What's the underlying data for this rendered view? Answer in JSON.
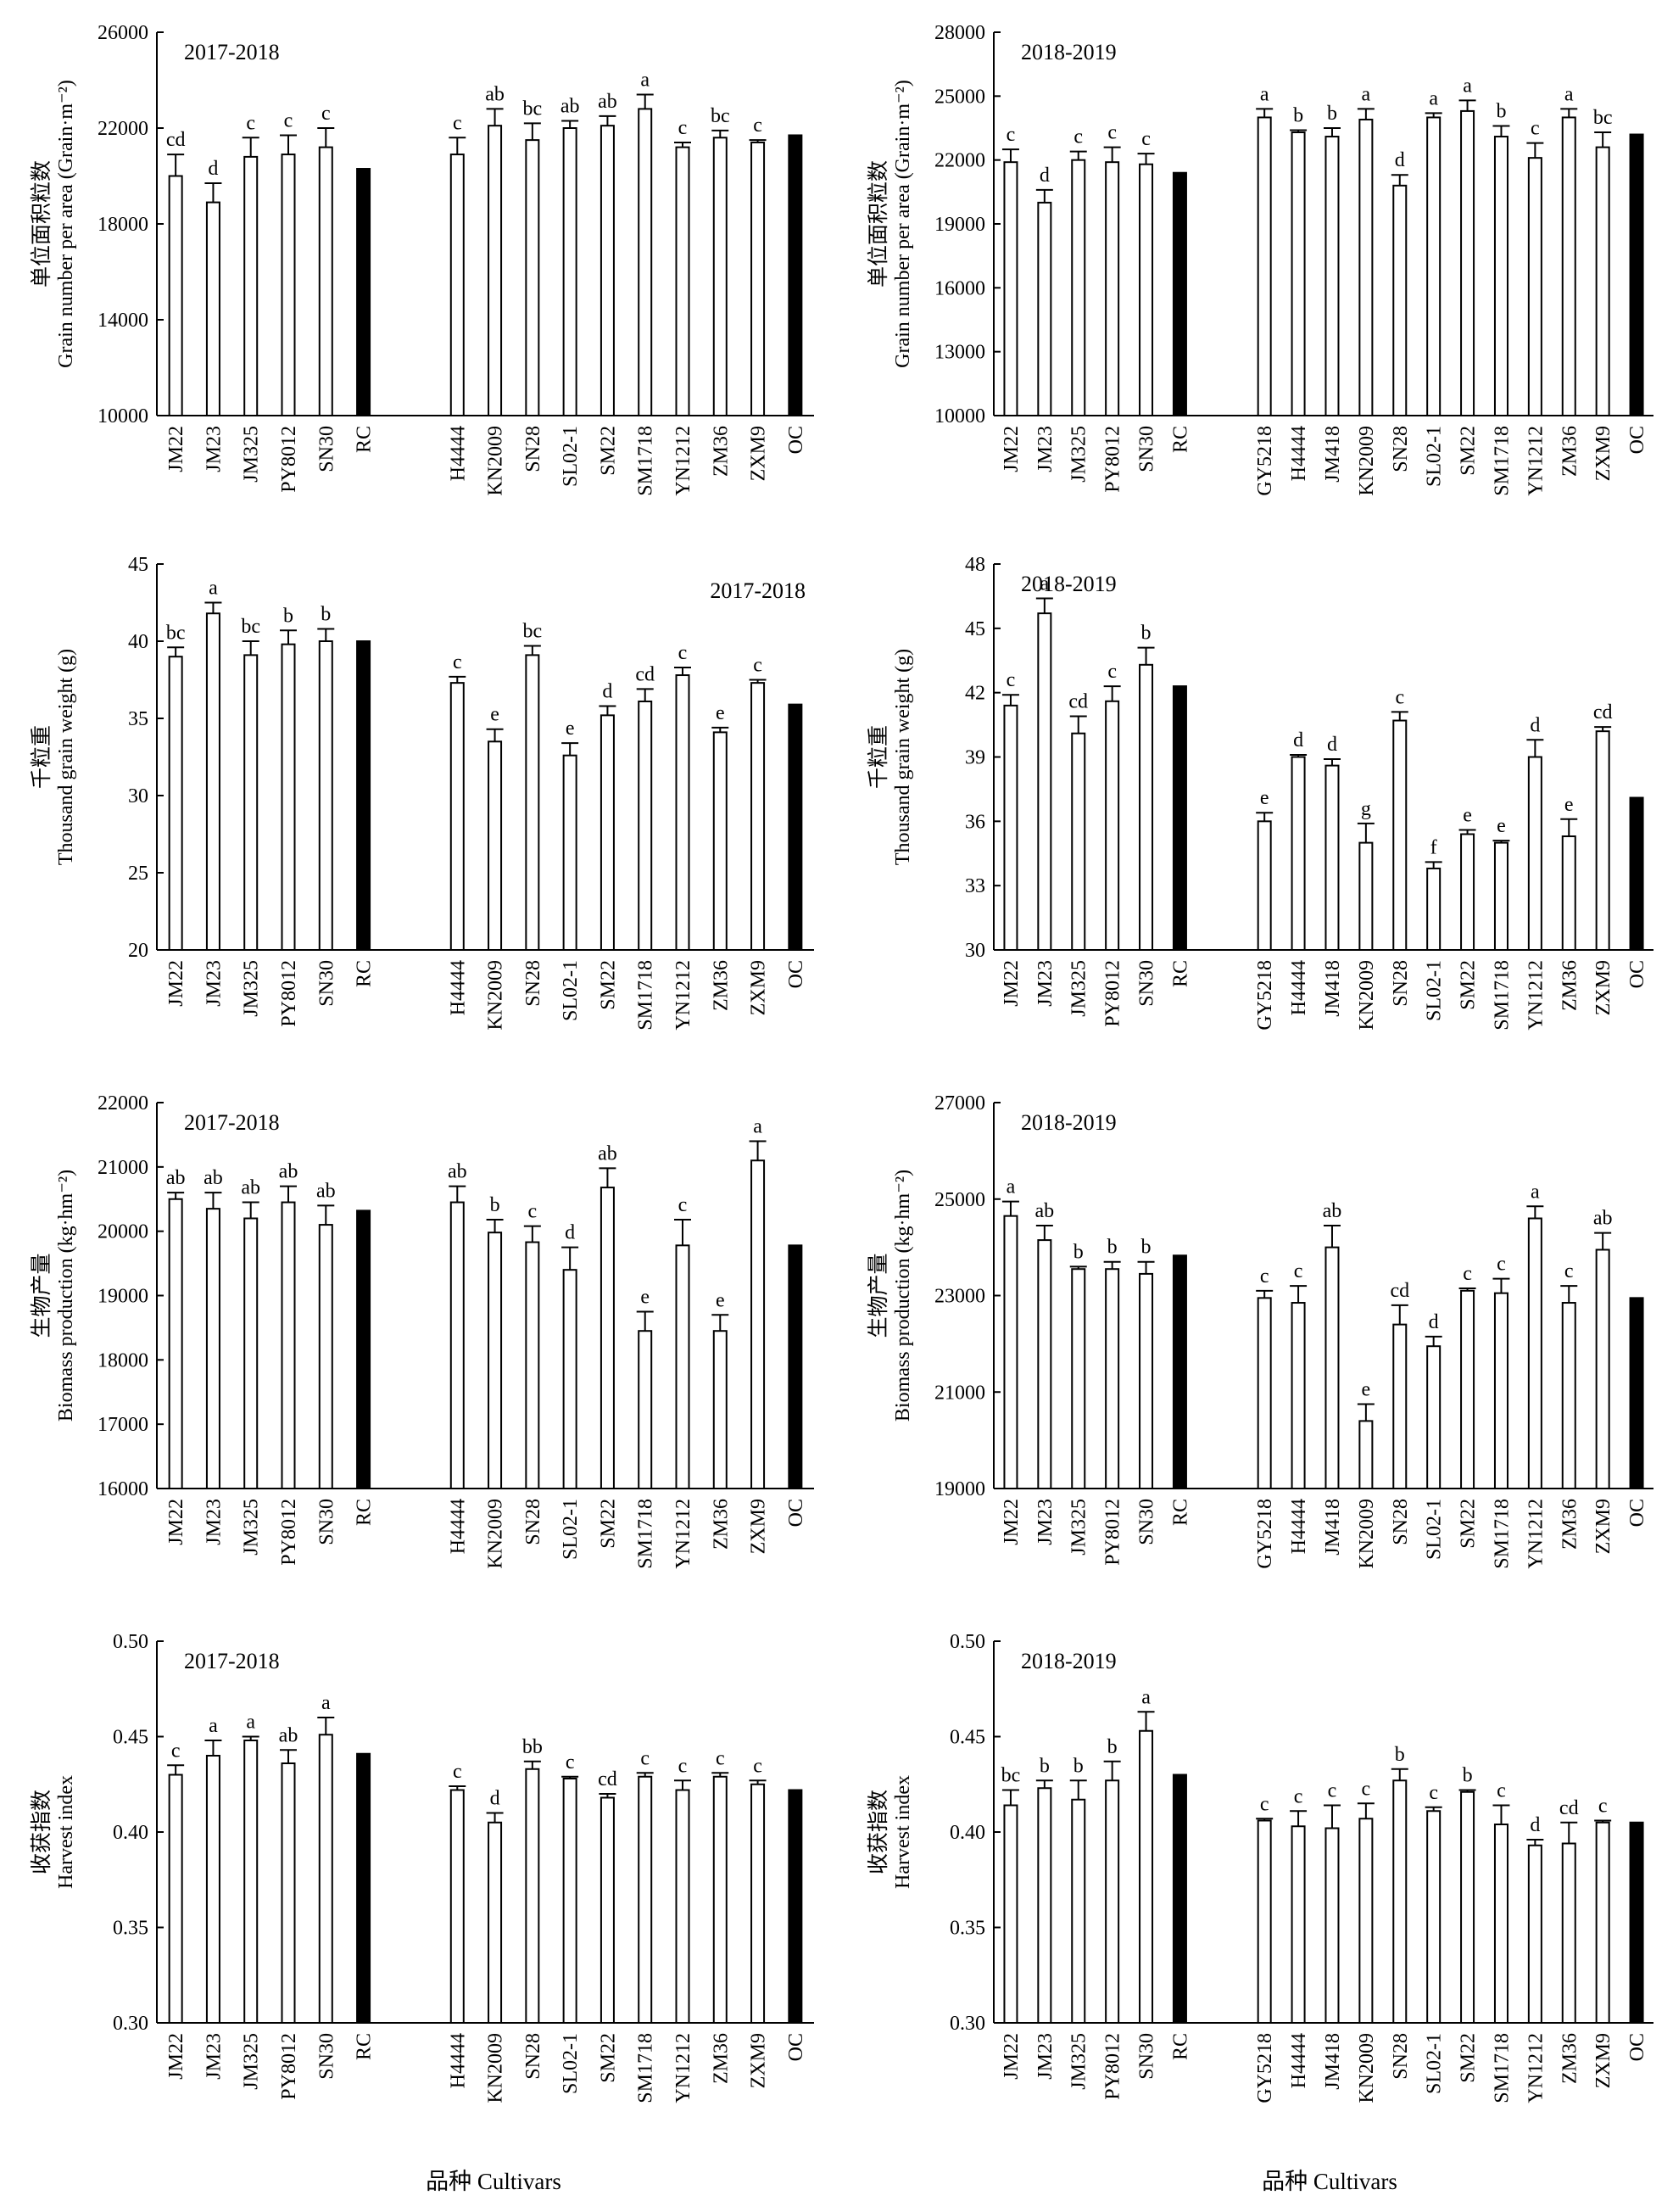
{
  "figure_xlabels": [
    "品种 Cultivars",
    "品种 Cultivars"
  ],
  "colors": {
    "regular_bar": "#ffffff",
    "control_bar": "#000000",
    "axis": "#000000"
  },
  "chart_data": [
    {
      "type": "bar",
      "panel": "a",
      "year_label": "2017-2018",
      "ylabel_cn": "单位面积粒数",
      "ylabel_en": "Grain number per area (Grain·m⁻²)",
      "ylim": [
        10000,
        26000
      ],
      "yticks": [
        "10000",
        "14000",
        "18000",
        "22000",
        "26000"
      ],
      "groups": [
        {
          "categories": [
            "JM22",
            "JM23",
            "JM325",
            "PY8012",
            "SN30",
            "RC"
          ],
          "values": [
            20000,
            18900,
            20800,
            20900,
            21200,
            20300
          ],
          "errors": [
            900,
            800,
            800,
            800,
            800,
            0
          ],
          "letters": [
            "cd",
            "d",
            "c",
            "c",
            "c",
            ""
          ]
        },
        {
          "categories": [
            "H4444",
            "KN2009",
            "SN28",
            "SL02-1",
            "SM22",
            "SM1718",
            "YN1212",
            "ZM36",
            "ZXM9",
            "OC"
          ],
          "values": [
            20900,
            22100,
            21500,
            22000,
            22100,
            22800,
            21200,
            21600,
            21400,
            21700
          ],
          "errors": [
            700,
            700,
            700,
            300,
            400,
            600,
            200,
            300,
            100,
            0
          ],
          "letters": [
            "c",
            "ab",
            "bc",
            "ab",
            "ab",
            "a",
            "c",
            "bc",
            "c",
            ""
          ]
        }
      ]
    },
    {
      "type": "bar",
      "panel": "b",
      "year_label": "2018-2019",
      "ylabel_cn": "单位面积粒数",
      "ylabel_en": "Grain number per area (Grain·m⁻²)",
      "ylim": [
        10000,
        28000
      ],
      "yticks": [
        "10000",
        "13000",
        "16000",
        "19000",
        "22000",
        "25000",
        "28000"
      ],
      "groups": [
        {
          "categories": [
            "JM22",
            "JM23",
            "JM325",
            "PY8012",
            "SN30",
            "RC"
          ],
          "values": [
            21900,
            20000,
            22000,
            21900,
            21800,
            21400
          ],
          "errors": [
            600,
            600,
            400,
            700,
            500,
            0
          ],
          "letters": [
            "c",
            "d",
            "c",
            "c",
            "c",
            ""
          ]
        },
        {
          "categories": [
            "GY5218",
            "H4444",
            "JM418",
            "KN2009",
            "SN28",
            "SL02-1",
            "SM22",
            "SM1718",
            "YN1212",
            "ZM36",
            "ZXM9",
            "OC"
          ],
          "values": [
            24000,
            23300,
            23100,
            23900,
            20800,
            24000,
            24300,
            23100,
            22100,
            24000,
            22600,
            23200
          ],
          "errors": [
            400,
            100,
            400,
            500,
            500,
            200,
            500,
            500,
            700,
            400,
            700,
            0
          ],
          "letters": [
            "a",
            "b",
            "b",
            "a",
            "d",
            "a",
            "a",
            "b",
            "c",
            "a",
            "bc",
            ""
          ]
        }
      ]
    },
    {
      "type": "bar",
      "panel": "c",
      "year_label": "2017-2018",
      "ylabel_cn": "千粒重",
      "ylabel_en": "Thousand grain weight (g)",
      "ylim": [
        20,
        45
      ],
      "yticks": [
        "20",
        "25",
        "30",
        "35",
        "40",
        "45"
      ],
      "groups": [
        {
          "categories": [
            "JM22",
            "JM23",
            "JM325",
            "PY8012",
            "SN30",
            "RC"
          ],
          "values": [
            39.0,
            41.8,
            39.1,
            39.8,
            40.0,
            40.0
          ],
          "errors": [
            0.6,
            0.7,
            0.9,
            0.9,
            0.8,
            0
          ],
          "letters": [
            "bc",
            "a",
            "bc",
            "b",
            "b",
            ""
          ]
        },
        {
          "categories": [
            "H4444",
            "KN2009",
            "SN28",
            "SL02-1",
            "SM22",
            "SM1718",
            "YN1212",
            "ZM36",
            "ZXM9",
            "OC"
          ],
          "values": [
            37.3,
            33.5,
            39.1,
            32.6,
            35.2,
            36.1,
            37.8,
            34.1,
            37.3,
            35.9
          ],
          "errors": [
            0.4,
            0.8,
            0.6,
            0.8,
            0.6,
            0.8,
            0.5,
            0.3,
            0.2,
            0
          ],
          "letters": [
            "c",
            "e",
            "bc",
            "e",
            "d",
            "cd",
            "c",
            "e",
            "c",
            ""
          ]
        }
      ]
    },
    {
      "type": "bar",
      "panel": "d",
      "year_label": "2018-2019",
      "ylabel_cn": "千粒重",
      "ylabel_en": "Thousand grain weight (g)",
      "ylim": [
        30,
        48
      ],
      "yticks": [
        "30",
        "33",
        "36",
        "39",
        "42",
        "45",
        "48"
      ],
      "groups": [
        {
          "categories": [
            "JM22",
            "JM23",
            "JM325",
            "PY8012",
            "SN30",
            "RC"
          ],
          "values": [
            41.4,
            45.7,
            40.1,
            41.6,
            43.3,
            42.3
          ],
          "errors": [
            0.5,
            0.7,
            0.8,
            0.7,
            0.8,
            0
          ],
          "letters": [
            "c",
            "a",
            "cd",
            "c",
            "b",
            ""
          ]
        },
        {
          "categories": [
            "GY5218",
            "H4444",
            "JM418",
            "KN2009",
            "SN28",
            "SL02-1",
            "SM22",
            "SM1718",
            "YN1212",
            "ZM36",
            "ZXM9",
            "OC"
          ],
          "values": [
            36.0,
            39.0,
            38.6,
            35.0,
            40.7,
            33.8,
            35.4,
            35.0,
            39.0,
            35.3,
            40.2,
            37.1
          ],
          "errors": [
            0.4,
            0.1,
            0.3,
            0.9,
            0.4,
            0.3,
            0.2,
            0.1,
            0.8,
            0.8,
            0.2,
            0
          ],
          "letters": [
            "e",
            "d",
            "d",
            "g",
            "c",
            "f",
            "e",
            "e",
            "d",
            "e",
            "cd",
            ""
          ]
        }
      ]
    },
    {
      "type": "bar",
      "panel": "e",
      "year_label": "2017-2018",
      "ylabel_cn": "生物产量",
      "ylabel_en": "Biomass production (kg·hm⁻²)",
      "ylim": [
        16000,
        22000
      ],
      "yticks": [
        "16000",
        "17000",
        "18000",
        "19000",
        "20000",
        "21000",
        "22000"
      ],
      "groups": [
        {
          "categories": [
            "JM22",
            "JM23",
            "JM325",
            "PY8012",
            "SN30",
            "RC"
          ],
          "values": [
            20500,
            20350,
            20200,
            20450,
            20100,
            20320
          ],
          "errors": [
            100,
            250,
            250,
            250,
            300,
            0
          ],
          "letters": [
            "ab",
            "ab",
            "ab",
            "ab",
            "ab",
            ""
          ]
        },
        {
          "categories": [
            "H4444",
            "KN2009",
            "SN28",
            "SL02-1",
            "SM22",
            "SM1718",
            "YN1212",
            "ZM36",
            "ZXM9",
            "OC"
          ],
          "values": [
            20450,
            19980,
            19830,
            19400,
            20680,
            18450,
            19780,
            18450,
            21100,
            19780
          ],
          "errors": [
            250,
            200,
            250,
            350,
            300,
            300,
            400,
            250,
            300,
            0
          ],
          "letters": [
            "ab",
            "b",
            "c",
            "d",
            "ab",
            "e",
            "c",
            "e",
            "a",
            ""
          ]
        }
      ]
    },
    {
      "type": "bar",
      "panel": "f",
      "year_label": "2018-2019",
      "ylabel_cn": "生物产量",
      "ylabel_en": "Biomass production (kg·hm⁻²)",
      "ylim": [
        19000,
        27000
      ],
      "yticks": [
        "19000",
        "21000",
        "23000",
        "25000",
        "27000"
      ],
      "groups": [
        {
          "categories": [
            "JM22",
            "JM23",
            "JM325",
            "PY8012",
            "SN30",
            "RC"
          ],
          "values": [
            24650,
            24150,
            23550,
            23550,
            23450,
            23830
          ],
          "errors": [
            300,
            300,
            50,
            150,
            250,
            0
          ],
          "letters": [
            "a",
            "ab",
            "b",
            "b",
            "b",
            ""
          ]
        },
        {
          "categories": [
            "GY5218",
            "H4444",
            "JM418",
            "KN2009",
            "SN28",
            "SL02-1",
            "SM22",
            "SM1718",
            "YN1212",
            "ZM36",
            "ZXM9",
            "OC"
          ],
          "values": [
            22950,
            22850,
            24000,
            20400,
            22400,
            21950,
            23100,
            23050,
            24600,
            22850,
            23950,
            22950
          ],
          "errors": [
            150,
            350,
            450,
            350,
            400,
            200,
            50,
            300,
            250,
            350,
            350,
            0
          ],
          "letters": [
            "c",
            "c",
            "ab",
            "e",
            "cd",
            "d",
            "c",
            "c",
            "a",
            "c",
            "ab",
            ""
          ]
        }
      ]
    },
    {
      "type": "bar",
      "panel": "g",
      "year_label": "2017-2018",
      "ylabel_cn": "收获指数",
      "ylabel_en": "Harvest index",
      "ylim": [
        0.3,
        0.5
      ],
      "yticks": [
        "0.30",
        "0.35",
        "0.40",
        "0.45",
        "0.50"
      ],
      "groups": [
        {
          "categories": [
            "JM22",
            "JM23",
            "JM325",
            "PY8012",
            "SN30",
            "RC"
          ],
          "values": [
            0.43,
            0.44,
            0.448,
            0.436,
            0.451,
            0.441
          ],
          "errors": [
            0.005,
            0.008,
            0.002,
            0.007,
            0.009,
            0
          ],
          "letters": [
            "c",
            "a",
            "a",
            "ab",
            "a",
            ""
          ]
        },
        {
          "categories": [
            "H4444",
            "KN2009",
            "SN28",
            "SL02-1",
            "SM22",
            "SM1718",
            "YN1212",
            "ZM36",
            "ZXM9",
            "OC"
          ],
          "values": [
            0.422,
            0.405,
            0.433,
            0.428,
            0.418,
            0.429,
            0.422,
            0.429,
            0.425,
            0.422
          ],
          "errors": [
            0.002,
            0.005,
            0.004,
            0.001,
            0.002,
            0.002,
            0.005,
            0.002,
            0.002,
            0
          ],
          "letters": [
            "c",
            "d",
            "bb",
            "c",
            "cd",
            "c",
            "c",
            "c",
            "c",
            ""
          ]
        }
      ]
    },
    {
      "type": "bar",
      "panel": "h",
      "year_label": "2018-2019",
      "ylabel_cn": "收获指数",
      "ylabel_en": "Harvest index",
      "ylim": [
        0.3,
        0.5
      ],
      "yticks": [
        "0.30",
        "0.35",
        "0.40",
        "0.45",
        "0.50"
      ],
      "groups": [
        {
          "categories": [
            "JM22",
            "JM23",
            "JM325",
            "PY8012",
            "SN30",
            "RC"
          ],
          "values": [
            0.414,
            0.423,
            0.417,
            0.427,
            0.453,
            0.43
          ],
          "errors": [
            0.008,
            0.004,
            0.01,
            0.01,
            0.01,
            0
          ],
          "letters": [
            "bc",
            "b",
            "b",
            "b",
            "a",
            ""
          ]
        },
        {
          "categories": [
            "GY5218",
            "H4444",
            "JM418",
            "KN2009",
            "SN28",
            "SL02-1",
            "SM22",
            "SM1718",
            "YN1212",
            "ZM36",
            "ZXM9",
            "OC"
          ],
          "values": [
            0.406,
            0.403,
            0.402,
            0.407,
            0.427,
            0.411,
            0.421,
            0.404,
            0.393,
            0.394,
            0.405,
            0.405
          ],
          "errors": [
            0.001,
            0.008,
            0.012,
            0.008,
            0.006,
            0.002,
            0.001,
            0.01,
            0.003,
            0.011,
            0.001,
            0
          ],
          "letters": [
            "c",
            "c",
            "c",
            "c",
            "b",
            "c",
            "b",
            "c",
            "d",
            "cd",
            "c",
            ""
          ]
        }
      ]
    }
  ]
}
